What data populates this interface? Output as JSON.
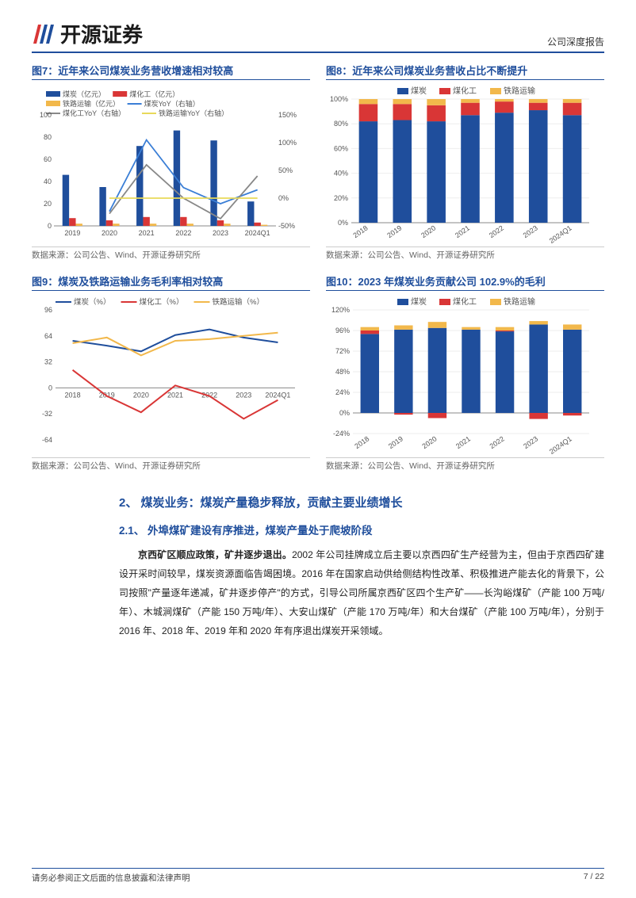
{
  "header": {
    "company": "开源证券",
    "report_type": "公司深度报告"
  },
  "chart7": {
    "title": "图7：近年来公司煤炭业务营收增速相对较高",
    "source": "数据来源：公司公告、Wind、开源证券研究所",
    "type": "bar+line",
    "categories": [
      "2019",
      "2020",
      "2021",
      "2022",
      "2023",
      "2024Q1"
    ],
    "legend_bars": [
      "煤炭（亿元）",
      "煤化工（亿元）",
      "铁路运输（亿元）"
    ],
    "legend_lines": [
      "煤炭YoY（右轴）",
      "煤化工YoY（右轴）",
      "铁路运输YoY（右轴）"
    ],
    "bars": {
      "coal": [
        46,
        35,
        72,
        86,
        77,
        22
      ],
      "chem": [
        7,
        5,
        8,
        8,
        5,
        3
      ],
      "rail": [
        2,
        2,
        2,
        2,
        2,
        1
      ]
    },
    "lines": {
      "coal_yoy": [
        null,
        -24,
        105,
        19,
        -10,
        15
      ],
      "chem_yoy": [
        null,
        -28,
        60,
        0,
        -37,
        40
      ],
      "rail_yoy": [
        null,
        0,
        0,
        0,
        0,
        0
      ]
    },
    "colors": {
      "coal": "#1f4e9c",
      "chem": "#d93636",
      "rail": "#f2b84b",
      "coal_yoy": "#3a7ed6",
      "chem_yoy": "#888888",
      "rail_yoy": "#e8d95a"
    },
    "y_left": {
      "min": 0,
      "max": 100,
      "step": 20
    },
    "y_right": {
      "min": -50,
      "max": 150,
      "step": 50,
      "suffix": "%"
    }
  },
  "chart8": {
    "title": "图8：近年来公司煤炭业务营收占比不断提升",
    "source": "数据来源：公司公告、Wind、开源证券研究所",
    "type": "stacked-bar",
    "categories": [
      "2018",
      "2019",
      "2020",
      "2021",
      "2022",
      "2023",
      "2024Q1"
    ],
    "legend": [
      "煤炭",
      "煤化工",
      "铁路运输"
    ],
    "values": {
      "coal": [
        82,
        83,
        82,
        87,
        89,
        91,
        87
      ],
      "chem": [
        14,
        13,
        13,
        10,
        9,
        6,
        10
      ],
      "rail": [
        4,
        4,
        5,
        3,
        2,
        3,
        3
      ]
    },
    "colors": {
      "coal": "#1f4e9c",
      "chem": "#d93636",
      "rail": "#f2b84b"
    },
    "y": {
      "min": 0,
      "max": 100,
      "step": 20,
      "suffix": "%"
    }
  },
  "chart9": {
    "title": "图9：煤炭及铁路运输业务毛利率相对较高",
    "source": "数据来源：公司公告、Wind、开源证券研究所",
    "type": "line",
    "categories": [
      "2018",
      "2019",
      "2020",
      "2021",
      "2022",
      "2023",
      "2024Q1"
    ],
    "legend": [
      "煤炭（%）",
      "煤化工（%）",
      "铁路运输（%）"
    ],
    "series": {
      "coal": [
        58,
        52,
        45,
        65,
        72,
        62,
        56
      ],
      "chem": [
        22,
        -10,
        -30,
        3,
        -10,
        -38,
        -15
      ],
      "rail": [
        55,
        62,
        40,
        58,
        60,
        64,
        68
      ]
    },
    "colors": {
      "coal": "#1f4e9c",
      "chem": "#d93636",
      "rail": "#f2b84b"
    },
    "y": {
      "min": -64,
      "max": 96,
      "step": 32
    }
  },
  "chart10": {
    "title": "图10：2023 年煤炭业务贡献公司 102.9%的毛利",
    "source": "数据来源：公司公告、Wind、开源证券研究所",
    "type": "stacked-bar",
    "categories": [
      "2018",
      "2019",
      "2020",
      "2021",
      "2022",
      "2023",
      "2024Q1"
    ],
    "legend": [
      "煤炭",
      "煤化工",
      "铁路运输"
    ],
    "values": {
      "coal": [
        92,
        97,
        99,
        97,
        95,
        103,
        97
      ],
      "chem": [
        4,
        -2,
        -6,
        0,
        1,
        -7,
        -3
      ],
      "rail": [
        4,
        5,
        7,
        3,
        4,
        4,
        6
      ]
    },
    "colors": {
      "coal": "#1f4e9c",
      "chem": "#d93636",
      "rail": "#f2b84b"
    },
    "y": {
      "min": -24,
      "max": 120,
      "step": 24,
      "suffix": "%"
    }
  },
  "section2": {
    "heading": "2、 煤炭业务：煤炭产量稳步释放，贡献主要业绩增长",
    "sub_heading": "2.1、 外埠煤矿建设有序推进，煤炭产量处于爬坡阶段",
    "para_bold": "京西矿区顺应政策，矿井逐步退出。",
    "para_rest": "2002 年公司挂牌成立后主要以京西四矿生产经营为主，但由于京西四矿建设开采时间较早，煤炭资源面临告竭困境。2016 年在国家启动供给侧结构性改革、积极推进产能去化的背景下，公司按照\"产量逐年递减，矿井逐步停产\"的方式，引导公司所属京西矿区四个生产矿——长沟峪煤矿（产能 100 万吨/年）、木城涧煤矿（产能 150 万吨/年）、大安山煤矿（产能 170 万吨/年）和大台煤矿（产能 100 万吨/年），分别于 2016 年、2018 年、2019 年和 2020 年有序退出煤炭开采领域。"
  },
  "footer": {
    "left": "请务必参阅正文后面的信息披露和法律声明",
    "right": "7 / 22"
  }
}
